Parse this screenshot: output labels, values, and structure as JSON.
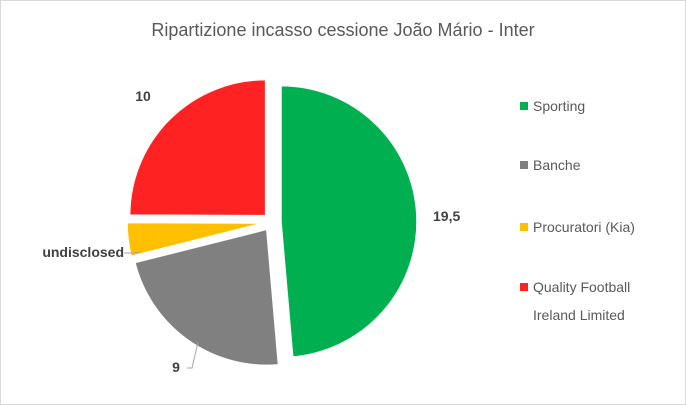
{
  "chart_data": {
    "type": "pie",
    "title": "Ripartizione incasso cessione João Mário - Inter",
    "exploded": true,
    "start": "12 o'clock, clockwise",
    "slices": [
      {
        "name": "Sporting",
        "value": 19.5,
        "label": "19,5",
        "color": "#00b050"
      },
      {
        "name": "Banche",
        "value": 9,
        "label": "9",
        "color": "#808080"
      },
      {
        "name": "Procuratori (Kia)",
        "value": 1.6,
        "label": "undisclosed",
        "color": "#ffc000"
      },
      {
        "name": "Quality Football Ireland Limited",
        "value": 10,
        "label": "10",
        "color": "#ff2222"
      }
    ],
    "legend_position": "right",
    "legend": [
      {
        "line1": "Sporting",
        "line2": ""
      },
      {
        "line1": "Banche",
        "line2": ""
      },
      {
        "line1": "Procuratori (Kia)",
        "line2": ""
      },
      {
        "line1": "Quality Football",
        "line2": "Ireland Limited"
      }
    ]
  }
}
